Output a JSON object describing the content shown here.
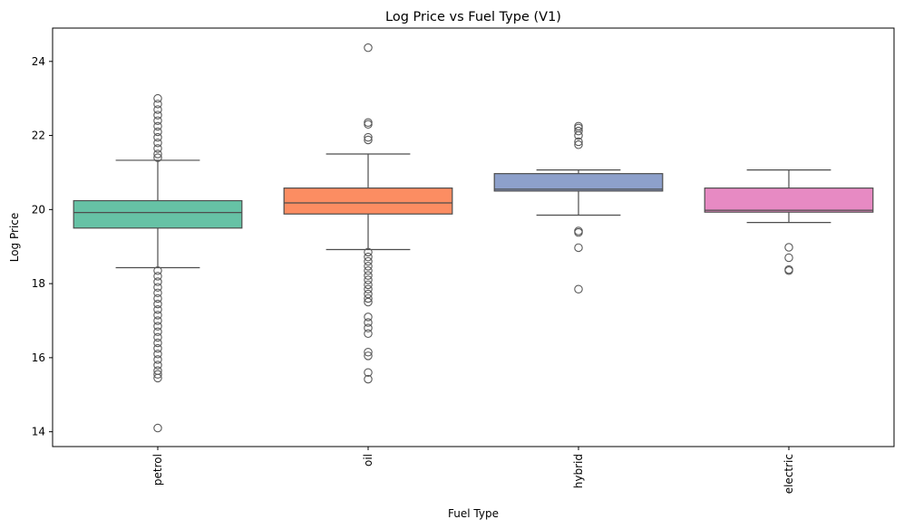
{
  "chart_data": {
    "type": "box",
    "title": "Log Price vs Fuel Type (V1)",
    "xlabel": "Fuel Type",
    "ylabel": "Log Price",
    "ylim": [
      13.6,
      24.9
    ],
    "yticks": [
      14,
      16,
      18,
      20,
      22,
      24
    ],
    "yticklabels": [
      "14",
      "16",
      "18",
      "20",
      "22",
      "24"
    ],
    "categories": [
      "petrol",
      "oil",
      "hybrid",
      "electric"
    ],
    "grid": false,
    "legend": "none",
    "colors": {
      "petrol": "#66c2a5",
      "oil": "#fc8d62",
      "hybrid": "#8da0cb",
      "electric": "#e78ac3",
      "line": "#4d4d4d",
      "outlier": "#5a5a5a"
    },
    "boxes": [
      {
        "category": "petrol",
        "whisker_low": 18.43,
        "q1": 19.5,
        "median": 19.92,
        "q3": 20.24,
        "whisker_high": 21.33,
        "outliers": [
          23.0,
          22.85,
          22.7,
          22.55,
          22.4,
          22.25,
          22.1,
          21.95,
          21.8,
          21.65,
          21.5,
          21.4,
          18.35,
          18.2,
          18.05,
          17.9,
          17.75,
          17.6,
          17.45,
          17.3,
          17.15,
          17.0,
          16.85,
          16.7,
          16.55,
          16.4,
          16.25,
          16.1,
          15.95,
          15.8,
          15.65,
          15.55,
          15.45,
          14.1
        ]
      },
      {
        "category": "oil",
        "whisker_low": 18.92,
        "q1": 19.88,
        "median": 20.18,
        "q3": 20.58,
        "whisker_high": 21.5,
        "outliers": [
          24.37,
          22.35,
          22.3,
          21.95,
          21.88,
          18.85,
          18.72,
          18.6,
          18.47,
          18.35,
          18.22,
          18.1,
          17.97,
          17.85,
          17.72,
          17.6,
          17.5,
          17.1,
          16.95,
          16.8,
          16.65,
          16.15,
          16.05,
          15.6,
          15.42
        ]
      },
      {
        "category": "hybrid",
        "whisker_low": 19.85,
        "q1": 20.5,
        "median": 20.55,
        "q3": 20.97,
        "whisker_high": 21.07,
        "outliers": [
          22.25,
          22.2,
          22.12,
          22.0,
          21.83,
          21.75,
          19.42,
          19.38,
          18.97,
          17.85
        ]
      },
      {
        "category": "electric",
        "whisker_low": 19.65,
        "q1": 19.93,
        "median": 19.98,
        "q3": 20.58,
        "whisker_high": 21.07,
        "outliers": [
          18.98,
          18.7,
          18.38,
          18.35
        ]
      }
    ]
  }
}
